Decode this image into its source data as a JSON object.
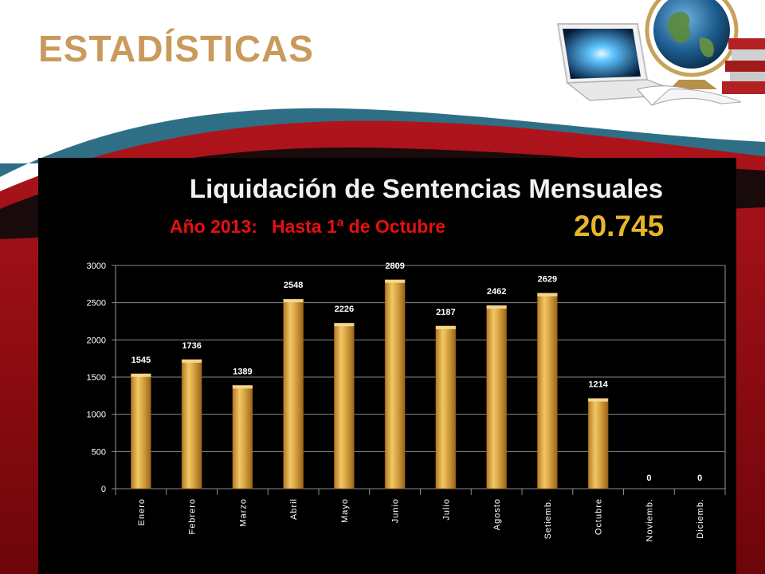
{
  "slide": {
    "heading": "ESTADÍSTICAS",
    "colors": {
      "heading": "#c99a5b",
      "panel": "#000000",
      "band": "#8b0a10",
      "bar": "#d9a441",
      "subtitle": "#e8100f",
      "total": "#e7b628"
    },
    "decoration_icons": [
      "laptop-icon",
      "globe-icon",
      "books-icon"
    ]
  },
  "chart_data": {
    "type": "bar",
    "title": "Liquidación de Sentencias Mensuales",
    "subtitle_part1": "Año 2013:",
    "subtitle_part2": "Hasta 1ª de Octubre",
    "total": "20.745",
    "categories": [
      "Enero",
      "Febrero",
      "Marzo",
      "Abril",
      "Mayo",
      "Junio",
      "Julio",
      "Agosto",
      "Setiemb.",
      "Octubre",
      "Noviemb.",
      "Diciemb."
    ],
    "values": [
      1545,
      1736,
      1389,
      2548,
      2226,
      2809,
      2187,
      2462,
      2629,
      1214,
      0,
      0
    ],
    "data_labels": [
      "1545",
      "1736",
      "1389",
      "2548",
      "2226",
      "2809",
      "2187",
      "2462",
      "2629",
      "1214",
      "0",
      "0"
    ],
    "yticks": [
      0,
      500,
      1000,
      1500,
      2000,
      2500,
      3000
    ],
    "ylim": [
      0,
      3000
    ],
    "grid": true,
    "legend": "none"
  }
}
